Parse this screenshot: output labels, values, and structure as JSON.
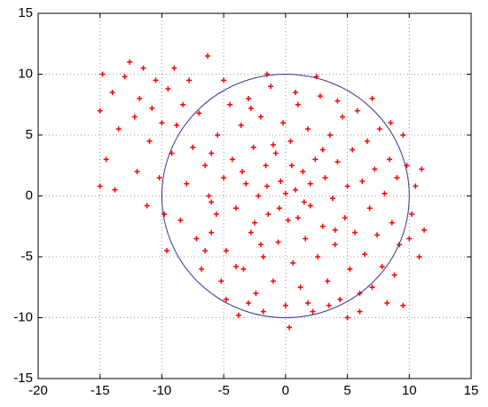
{
  "chart_data": {
    "type": "scatter",
    "x": [
      -15,
      -14.8,
      -14.5,
      -14,
      -13.5,
      -13,
      -12.6,
      -12.2,
      -12,
      -11.8,
      -11.5,
      -11,
      -10.8,
      -10.5,
      -10.2,
      -10,
      -9.8,
      -9.5,
      -9.2,
      -9,
      -8.8,
      -8.5,
      -8.3,
      -8,
      -7.8,
      -7.5,
      -7.2,
      -7,
      -6.8,
      -6.5,
      -6.3,
      -6,
      -15,
      -13.8,
      -11.2,
      -9.6,
      -6,
      -5.5,
      -5.2,
      -5,
      -4.8,
      -4.5,
      -4.3,
      -4,
      -3.8,
      -3.6,
      -3.4,
      -3.2,
      -3,
      -2.8,
      -2.6,
      -2.4,
      -2.2,
      -2,
      -1.8,
      -1.6,
      -1.4,
      -1.2,
      -1,
      -0.8,
      -0.6,
      -0.4,
      -0.2,
      0,
      0.2,
      0.4,
      0.6,
      0.8,
      1,
      1.2,
      1.4,
      1.6,
      1.8,
      2,
      2.2,
      2.4,
      2.6,
      2.8,
      3,
      3.2,
      3.4,
      3.6,
      3.8,
      4,
      4.2,
      4.4,
      4.6,
      4.8,
      5,
      5.2,
      5.4,
      5.6,
      5.8,
      6,
      6.2,
      6.4,
      6.6,
      6.8,
      7,
      7.2,
      7.4,
      7.6,
      7.8,
      8,
      8.2,
      8.4,
      8.6,
      8.8,
      9,
      9.2,
      9.5,
      9.8,
      10.2,
      10.5,
      11,
      11.2,
      10.8,
      -2.5,
      -1.5,
      -0.5,
      0.5,
      1.5,
      -3.5,
      -2,
      -1,
      0,
      1,
      2,
      3,
      4,
      -4,
      -6,
      -5.6,
      0.3,
      -4.8,
      5,
      2.5,
      -1.5,
      -5,
      7,
      8.5,
      6,
      3.5,
      -3,
      -6.5,
      -6.2,
      -2.8,
      0.8,
      4.2,
      9.5,
      10,
      -1.8,
      1.8
    ],
    "values": [
      7,
      10,
      3,
      8.5,
      5.5,
      9.8,
      11,
      6.5,
      2,
      8,
      10.5,
      4.5,
      7.2,
      9.5,
      1.5,
      6,
      -1.5,
      8.8,
      3.5,
      10.5,
      5.8,
      -2,
      7.5,
      1,
      9.5,
      4,
      -3.5,
      6.8,
      -6,
      2.5,
      11.5,
      -0.5,
      0.8,
      0.5,
      -0.8,
      -4.5,
      -3,
      5,
      -7,
      1.5,
      -4.5,
      7.5,
      3,
      -1,
      -9.8,
      5.8,
      -6,
      1,
      8,
      -3,
      4,
      -8,
      0,
      6.5,
      -5,
      2.5,
      -1.5,
      9,
      -7,
      3.5,
      -3.8,
      1.2,
      6,
      -9,
      -2,
      4.5,
      -5.5,
      0.5,
      7.5,
      -7.5,
      2,
      -3.5,
      5.5,
      -0.8,
      -9.5,
      3,
      -5,
      8.2,
      -2.5,
      1.5,
      -7,
      5,
      -0.2,
      -4,
      2.8,
      -8.5,
      6.5,
      -1.8,
      0.8,
      -6,
      3.8,
      -3,
      7,
      -9.5,
      1.2,
      -4.8,
      4.5,
      -1,
      -7.5,
      2.2,
      -3.2,
      5.5,
      -5.8,
      0.2,
      -8.8,
      3,
      -2.2,
      -6.5,
      1.5,
      -4,
      -9,
      2.5,
      -1.5,
      0.8,
      2.2,
      -2.8,
      -5,
      -2.2,
      0.8,
      -1,
      2.5,
      -0.5,
      2,
      -4,
      4.2,
      0.2,
      -1.8,
      1,
      3.8,
      -2.8,
      -5.8,
      3.5,
      -1.5,
      -10.8,
      -8.5,
      -10,
      9.8,
      10,
      9.5,
      8,
      6,
      -8,
      -9,
      -8.8,
      -4.5,
      0,
      7.2,
      8.5,
      7.8,
      5,
      -3.5,
      -9.5,
      -8.8
    ],
    "color": "#ff0000",
    "circle": {
      "center": [
        0,
        0
      ],
      "radius": 10,
      "color": "#333399"
    },
    "xlim": [
      -20,
      15
    ],
    "xticks": [
      -20,
      -15,
      -10,
      -5,
      0,
      5,
      10,
      15
    ],
    "ylim": [
      -15,
      15
    ],
    "yticks": [
      -15,
      -10,
      -5,
      0,
      5,
      10,
      15
    ],
    "grid": true
  }
}
